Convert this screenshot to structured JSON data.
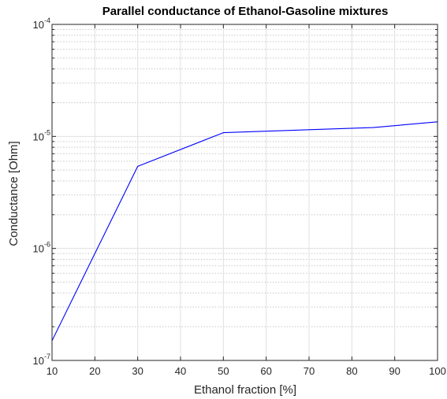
{
  "chart_data": {
    "type": "line",
    "title": "Parallel conductance of Ethanol-Gasoline mixtures",
    "xlabel": "Ethanol fraction [%]",
    "ylabel": "Conductance [Ohm]",
    "xlim": [
      10,
      100
    ],
    "ylim": [
      1e-07,
      0.0001
    ],
    "yscale": "log",
    "grid": true,
    "minor_grid": true,
    "xticks": [
      10,
      20,
      30,
      40,
      50,
      60,
      70,
      80,
      90,
      100
    ],
    "xtick_labels": [
      "10",
      "20",
      "30",
      "40",
      "50",
      "60",
      "70",
      "80",
      "90",
      "100"
    ],
    "yticks": [
      {
        "value": 1e-07,
        "base": "10",
        "exp": "-7"
      },
      {
        "value": 1e-06,
        "base": "10",
        "exp": "-6"
      },
      {
        "value": 1e-05,
        "base": "10",
        "exp": "-5"
      },
      {
        "value": 0.0001,
        "base": "10",
        "exp": "-4"
      }
    ],
    "series": [
      {
        "x": [
          10,
          30,
          50,
          85,
          100
        ],
        "y": [
          1.5e-07,
          5.4e-06,
          1.08e-05,
          1.2e-05,
          1.35e-05
        ],
        "color": "#0000ff"
      }
    ]
  }
}
